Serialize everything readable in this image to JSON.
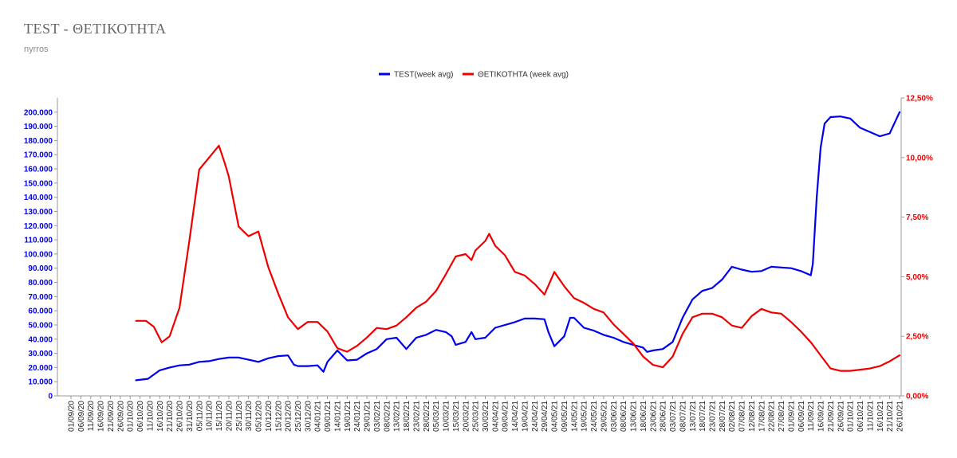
{
  "header": {
    "title": "TEST - ΘΕΤΙΚΟΤΗΤΑ",
    "subtitle": "nyrros"
  },
  "chart_data": {
    "type": "line",
    "title": "TEST - ΘΕΤΙΚΟΤΗΤΑ",
    "subtitle": "nyrros",
    "legend_position": "top-center",
    "grid": false,
    "x_ticks": [
      "01/09/20",
      "06/09/20",
      "11/09/20",
      "16/09/20",
      "21/09/20",
      "26/09/20",
      "01/10/20",
      "06/10/20",
      "11/10/20",
      "16/10/20",
      "21/10/20",
      "26/10/20",
      "31/10/20",
      "05/11/20",
      "10/11/20",
      "15/11/20",
      "20/11/20",
      "25/11/20",
      "30/11/20",
      "05/12/20",
      "10/12/20",
      "15/12/20",
      "20/12/20",
      "25/12/20",
      "30/12/20",
      "04/01/21",
      "09/01/21",
      "14/01/21",
      "19/01/21",
      "24/01/21",
      "29/01/21",
      "03/02/21",
      "08/02/21",
      "13/02/21",
      "18/02/21",
      "23/02/21",
      "28/02/21",
      "05/03/21",
      "10/03/21",
      "15/03/21",
      "20/03/21",
      "25/03/21",
      "30/03/21",
      "04/04/21",
      "09/04/21",
      "14/04/21",
      "19/04/21",
      "24/04/21",
      "29/04/21",
      "04/05/21",
      "09/05/21",
      "14/05/21",
      "19/05/21",
      "24/05/21",
      "29/05/21",
      "03/06/21",
      "08/06/21",
      "13/06/21",
      "18/06/21",
      "23/06/21",
      "28/06/21",
      "03/07/21",
      "08/07/21",
      "13/07/21",
      "18/07/21",
      "23/07/21",
      "28/07/21",
      "02/08/21",
      "07/08/21",
      "12/08/21",
      "17/08/21",
      "22/08/21",
      "27/08/21",
      "01/09/21",
      "06/09/21",
      "11/09/21",
      "16/09/21",
      "21/09/21",
      "26/09/21",
      "01/10/21",
      "06/10/21",
      "11/10/21",
      "16/10/21",
      "21/10/21",
      "26/10/21"
    ],
    "y_left": {
      "ticks": [
        "0",
        "10.000",
        "20.000",
        "30.000",
        "40.000",
        "50.000",
        "60.000",
        "70.000",
        "80.000",
        "90.000",
        "100.000",
        "110.000",
        "120.000",
        "130.000",
        "140.000",
        "150.000",
        "160.000",
        "170.000",
        "180.000",
        "190.000",
        "200.000"
      ],
      "min": 0,
      "max": 210000
    },
    "y_right": {
      "ticks": [
        "0,00%",
        "2,50%",
        "5,00%",
        "7,50%",
        "10,00%",
        "12,50%"
      ],
      "min": 0,
      "max": 0.125
    },
    "series": [
      {
        "name": "TEST(week avg)",
        "axis": "left",
        "color": "#0000ee",
        "x": [
          "04/10/20",
          "10/10/20",
          "16/10/20",
          "21/10/20",
          "26/10/20",
          "31/10/20",
          "05/11/20",
          "10/11/20",
          "15/11/20",
          "20/11/20",
          "25/11/20",
          "30/11/20",
          "05/12/20",
          "10/12/20",
          "15/12/20",
          "20/12/20",
          "23/12/20",
          "25/12/20",
          "30/12/20",
          "04/01/21",
          "07/01/21",
          "09/01/21",
          "14/01/21",
          "19/01/21",
          "24/01/21",
          "29/01/21",
          "03/02/21",
          "08/02/21",
          "13/02/21",
          "18/02/21",
          "23/02/21",
          "28/02/21",
          "05/03/21",
          "10/03/21",
          "13/03/21",
          "15/03/21",
          "20/03/21",
          "23/03/21",
          "25/03/21",
          "30/03/21",
          "04/04/21",
          "09/04/21",
          "14/04/21",
          "19/04/21",
          "24/04/21",
          "29/04/21",
          "01/05/21",
          "04/05/21",
          "09/05/21",
          "12/05/21",
          "14/05/21",
          "19/05/21",
          "24/05/21",
          "29/05/21",
          "03/06/21",
          "08/06/21",
          "13/06/21",
          "18/06/21",
          "20/06/21",
          "23/06/21",
          "28/06/21",
          "03/07/21",
          "08/07/21",
          "13/07/21",
          "18/07/21",
          "23/07/21",
          "28/07/21",
          "02/08/21",
          "07/08/21",
          "12/08/21",
          "17/08/21",
          "22/08/21",
          "27/08/21",
          "01/09/21",
          "06/09/21",
          "11/09/21",
          "12/09/21",
          "14/09/21",
          "16/09/21",
          "18/09/21",
          "21/09/21",
          "26/09/21",
          "01/10/21",
          "06/10/21",
          "11/10/21",
          "16/10/21",
          "21/10/21",
          "26/10/21"
        ],
        "values": [
          11000,
          12000,
          18000,
          20000,
          21500,
          22000,
          24000,
          24500,
          26000,
          27000,
          27000,
          25500,
          24000,
          26500,
          28000,
          28500,
          22000,
          21000,
          21000,
          21500,
          17000,
          24000,
          32000,
          25000,
          25500,
          30000,
          33000,
          40000,
          41000,
          33000,
          41000,
          43000,
          46500,
          45000,
          42000,
          36000,
          38000,
          45000,
          40000,
          41000,
          48000,
          50000,
          52000,
          54500,
          54500,
          54000,
          45000,
          35000,
          42000,
          55000,
          55000,
          48000,
          46000,
          43000,
          41000,
          38000,
          36000,
          34000,
          31000,
          32000,
          33000,
          38000,
          55000,
          68000,
          74000,
          76000,
          82000,
          91000,
          89000,
          87500,
          88000,
          91000,
          90500,
          90000,
          88000,
          85000,
          93000,
          140000,
          175000,
          192000,
          196500,
          197000,
          195500,
          189000,
          186000,
          183000,
          185000,
          200000
        ]
      },
      {
        "name": "ΘΕΤΙΚΟΤΗΤΑ (week avg)",
        "axis": "right",
        "color": "#ee0000",
        "x": [
          "04/10/20",
          "09/10/20",
          "13/10/20",
          "17/10/20",
          "21/10/20",
          "26/10/20",
          "31/10/20",
          "05/11/20",
          "10/11/20",
          "15/11/20",
          "18/11/20",
          "20/11/20",
          "25/11/20",
          "30/11/20",
          "05/12/20",
          "10/12/20",
          "15/12/20",
          "20/12/20",
          "25/12/20",
          "30/12/20",
          "04/01/21",
          "09/01/21",
          "14/01/21",
          "19/01/21",
          "24/01/21",
          "29/01/21",
          "03/02/21",
          "08/02/21",
          "13/02/21",
          "18/02/21",
          "23/02/21",
          "28/02/21",
          "05/03/21",
          "10/03/21",
          "15/03/21",
          "20/03/21",
          "23/03/21",
          "25/03/21",
          "30/03/21",
          "01/04/21",
          "04/04/21",
          "09/04/21",
          "14/04/21",
          "19/04/21",
          "24/04/21",
          "29/04/21",
          "04/05/21",
          "09/05/21",
          "14/05/21",
          "19/05/21",
          "24/05/21",
          "29/05/21",
          "03/06/21",
          "08/06/21",
          "13/06/21",
          "18/06/21",
          "23/06/21",
          "28/06/21",
          "03/07/21",
          "08/07/21",
          "13/07/21",
          "18/07/21",
          "23/07/21",
          "28/07/21",
          "02/08/21",
          "07/08/21",
          "12/08/21",
          "17/08/21",
          "22/08/21",
          "27/08/21",
          "01/09/21",
          "06/09/21",
          "11/09/21",
          "16/09/21",
          "21/09/21",
          "26/09/21",
          "01/10/21",
          "06/10/21",
          "11/10/21",
          "16/10/21",
          "21/10/21",
          "26/10/21"
        ],
        "values": [
          0.0315,
          0.0315,
          0.029,
          0.0225,
          0.025,
          0.037,
          0.065,
          0.095,
          0.1,
          0.105,
          0.0975,
          0.092,
          0.071,
          0.067,
          0.069,
          0.054,
          0.043,
          0.033,
          0.028,
          0.031,
          0.031,
          0.027,
          0.02,
          0.0185,
          0.021,
          0.0245,
          0.0285,
          0.028,
          0.0295,
          0.033,
          0.037,
          0.0395,
          0.044,
          0.051,
          0.0585,
          0.0595,
          0.057,
          0.061,
          0.065,
          0.068,
          0.063,
          0.059,
          0.052,
          0.0505,
          0.047,
          0.0425,
          0.052,
          0.046,
          0.041,
          0.039,
          0.0365,
          0.035,
          0.03,
          0.026,
          0.022,
          0.0165,
          0.013,
          0.012,
          0.0165,
          0.026,
          0.033,
          0.0345,
          0.0345,
          0.033,
          0.0295,
          0.0285,
          0.0335,
          0.0365,
          0.035,
          0.0345,
          0.031,
          0.027,
          0.0225,
          0.017,
          0.0115,
          0.0105,
          0.0105,
          0.011,
          0.0115,
          0.0125,
          0.0145,
          0.017
        ]
      }
    ]
  }
}
